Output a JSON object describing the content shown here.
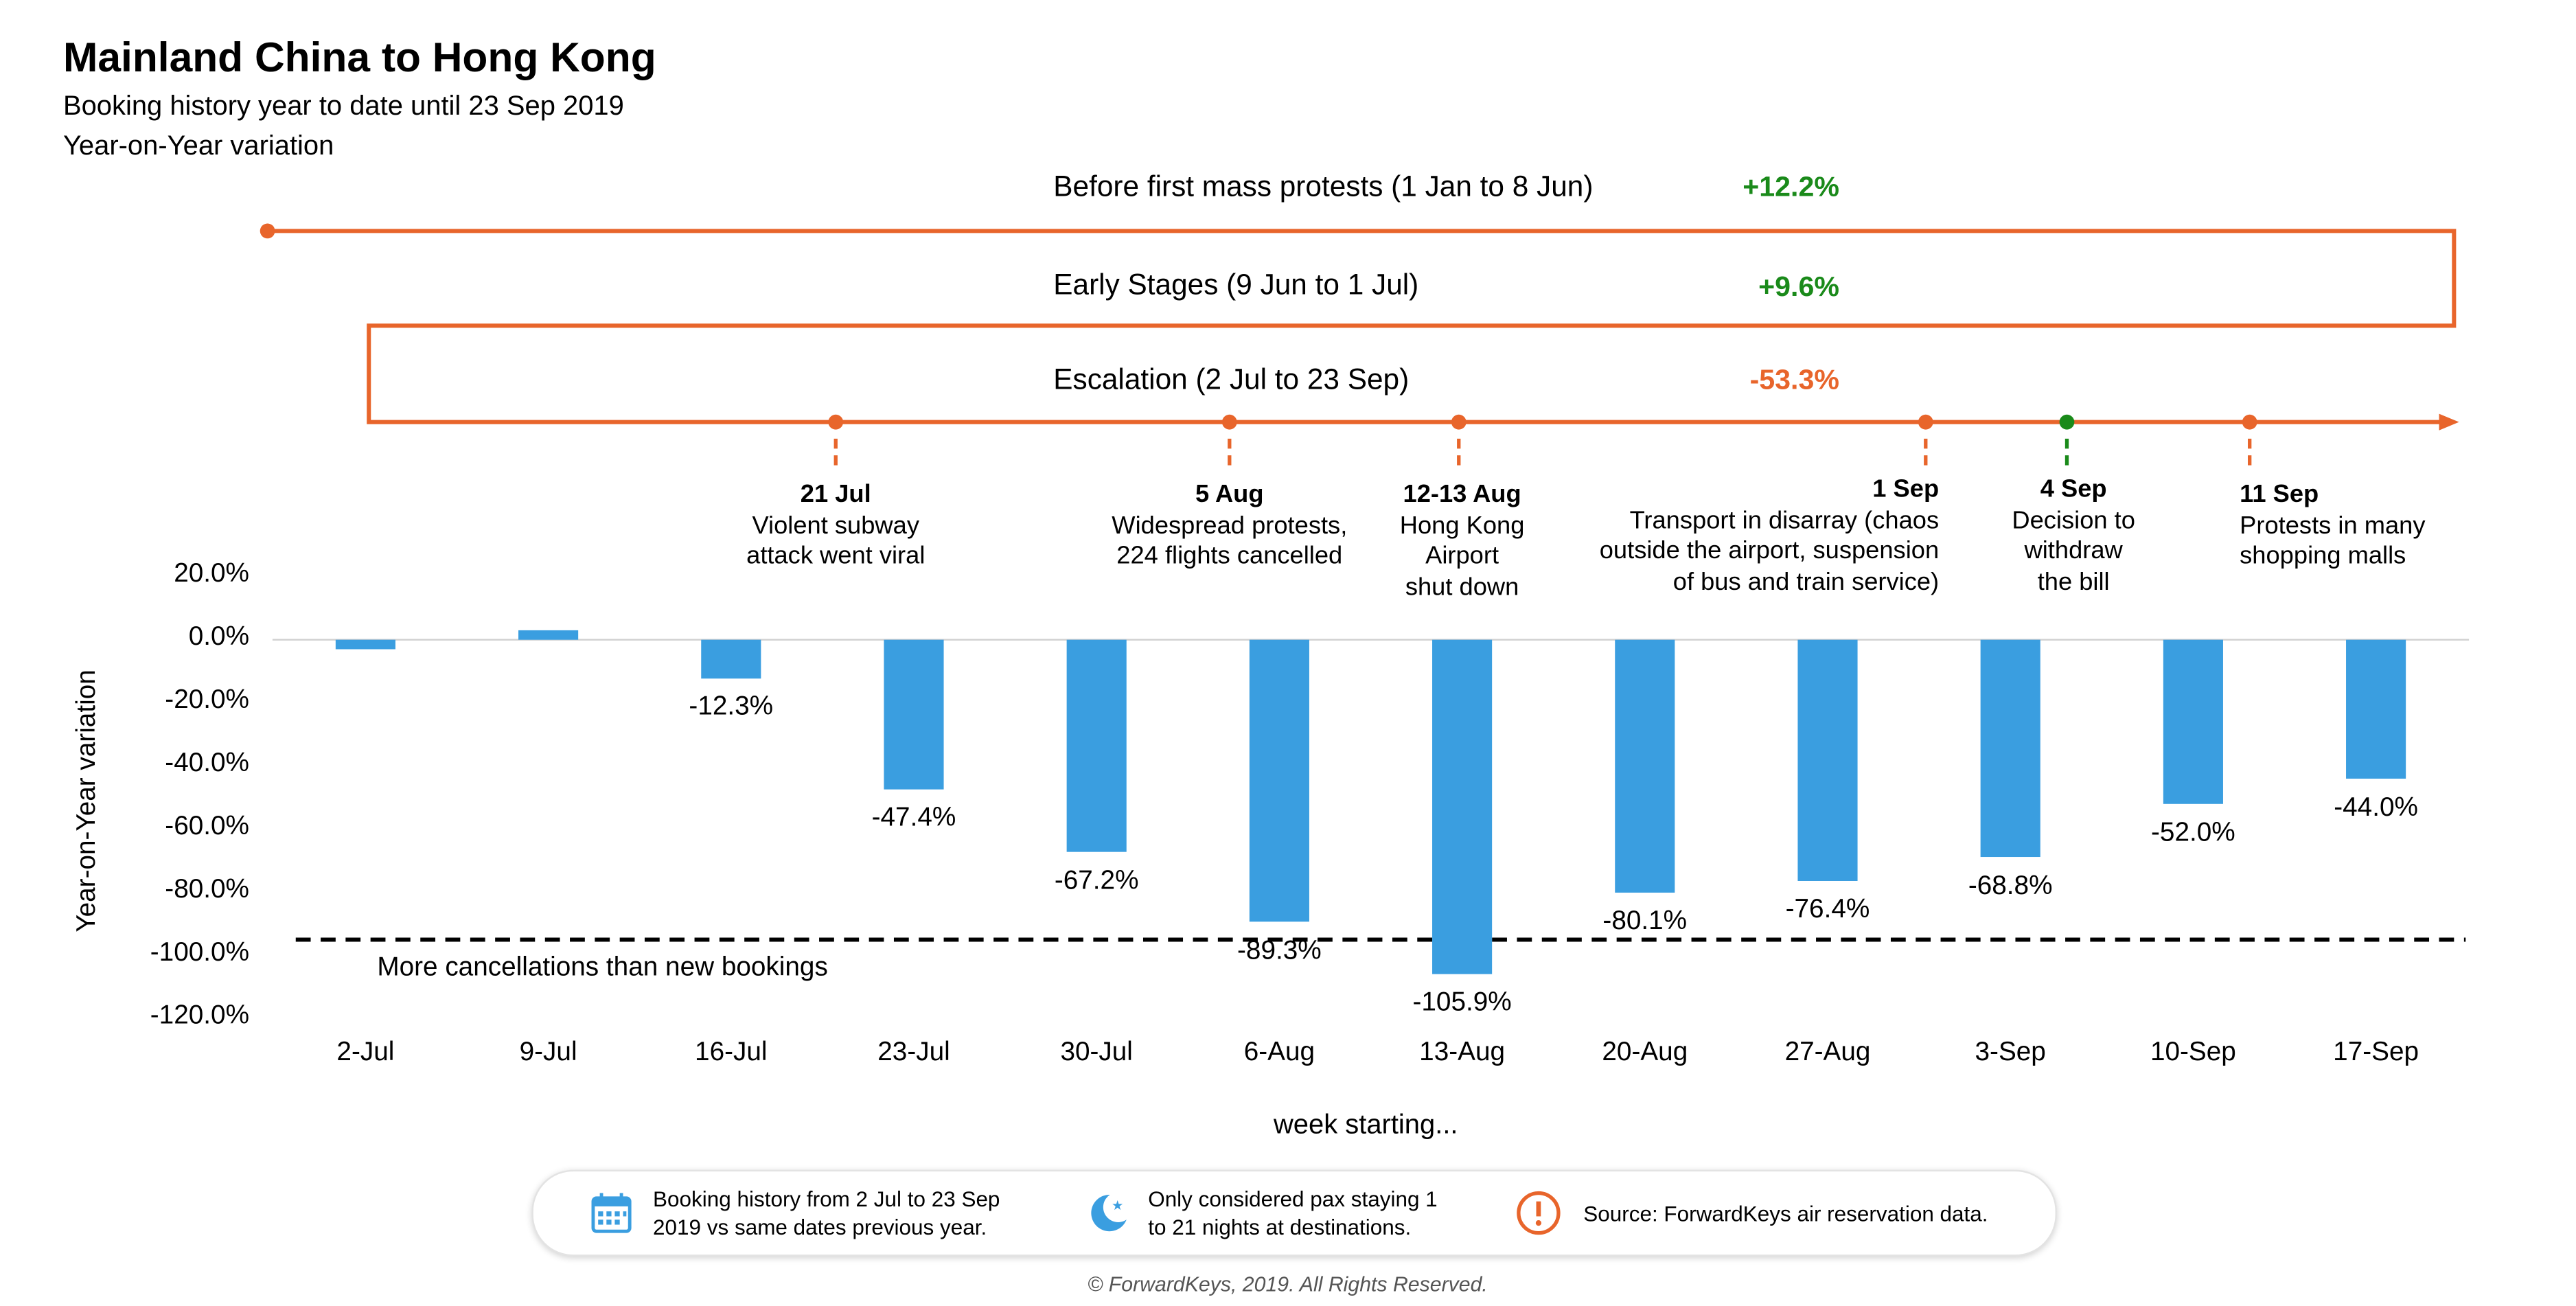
{
  "title": "Mainland China to Hong Kong",
  "subtitle": "Booking history year to date until 23 Sep 2019",
  "subtitle2": "Year-on-Year variation",
  "phases": [
    {
      "label": "Before first mass protests (1 Jan to 8 Jun)",
      "value": "+12.2%",
      "color": "#1a8a1a"
    },
    {
      "label": "Early Stages (9 Jun to 1 Jul)",
      "value": "+9.6%",
      "color": "#1a8a1a"
    },
    {
      "label": "Escalation (2 Jul to 23 Sep)",
      "value": "-53.3%",
      "color": "#e8652b"
    }
  ],
  "events": [
    {
      "date": "21 Jul",
      "text": [
        "Violent subway",
        "attack went viral"
      ]
    },
    {
      "date": "5 Aug",
      "text": [
        "Widespread protests,",
        "224 flights cancelled"
      ]
    },
    {
      "date": "12-13 Aug",
      "text": [
        "Hong Kong",
        "Airport",
        "shut down"
      ]
    },
    {
      "date": "1 Sep",
      "text": [
        "Transport in disarray (chaos",
        "outside the airport, suspension",
        "of bus and train service)"
      ]
    },
    {
      "date": "4 Sep",
      "text": [
        "Decision to",
        "withdraw",
        "the bill"
      ]
    },
    {
      "date": "11 Sep",
      "text": [
        "Protests in many",
        "shopping malls"
      ]
    }
  ],
  "threshold_label": "More cancellations than new bookings",
  "legend": {
    "item1": "Booking history from 2 Jul to 23 Sep\n2019 vs same dates previous year.",
    "item2": "Only considered pax staying 1\nto 21 nights at destinations.",
    "item3": "Source: ForwardKeys air reservation data.",
    "icons": [
      "calendar-icon",
      "moon-icon",
      "alert-icon"
    ]
  },
  "footer": "© ForwardKeys, 2019. All Rights Reserved.",
  "colors": {
    "bar": "#3a9ee0",
    "accent": "#e8652b",
    "green": "#1a8a1a"
  },
  "chart_data": {
    "type": "bar",
    "categories": [
      "2-Jul",
      "9-Jul",
      "16-Jul",
      "23-Jul",
      "30-Jul",
      "6-Aug",
      "13-Aug",
      "20-Aug",
      "27-Aug",
      "3-Sep",
      "10-Sep",
      "17-Sep"
    ],
    "values": [
      -3.0,
      3.0,
      -12.3,
      -47.4,
      -67.2,
      -89.3,
      -105.9,
      -80.1,
      -76.4,
      -68.8,
      -52.0,
      -44.0
    ],
    "data_labels": [
      "",
      "",
      "-12.3%",
      "-47.4%",
      "-67.2%",
      "-89.3%",
      "-105.9%",
      "-80.1%",
      "-76.4%",
      "-68.8%",
      "-52.0%",
      "-44.0%"
    ],
    "ytick_labels": [
      "20.0%",
      "0.0%",
      "-20.0%",
      "-40.0%",
      "-60.0%",
      "-80.0%",
      "-100.0%",
      "-120.0%"
    ],
    "yticks": [
      20,
      0,
      -20,
      -40,
      -60,
      -80,
      -100,
      -120
    ],
    "ylim": [
      -120,
      20
    ],
    "threshold": -95,
    "xlabel": "week starting...",
    "ylabel": "Year-on-Year variation",
    "grid": false
  }
}
